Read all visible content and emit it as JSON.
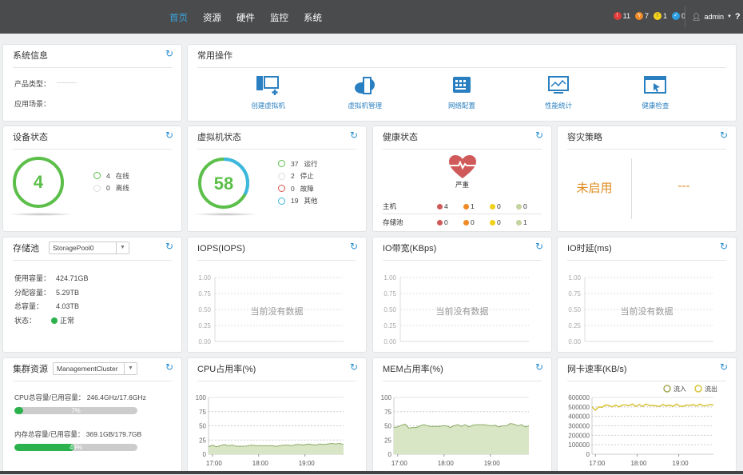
{
  "nav": {
    "items": [
      "首页",
      "资源",
      "硬件",
      "监控",
      "系统"
    ],
    "active": 0
  },
  "alerts": [
    {
      "icon": "critical-alarm-icon",
      "count": "11",
      "color": "#e03c3c"
    },
    {
      "icon": "major-alarm-icon",
      "count": "7",
      "color": "#f08a24"
    },
    {
      "icon": "minor-alarm-icon",
      "count": "1",
      "color": "#f2d11b"
    },
    {
      "icon": "ok-icon",
      "count": "0",
      "color": "#2a9ee0"
    }
  ],
  "user": {
    "name": "admin",
    "help": "?"
  },
  "sysinfo": {
    "title": "系统信息",
    "product_label": "产品类型：",
    "scene_label": "应用场景："
  },
  "ops": {
    "title": "常用操作",
    "items": [
      {
        "label": "创建虚拟机",
        "icon": "create-vm-icon"
      },
      {
        "label": "虚拟机管理",
        "icon": "vm-manage-icon"
      },
      {
        "label": "网络配置",
        "icon": "network-config-icon"
      },
      {
        "label": "性能统计",
        "icon": "performance-icon"
      },
      {
        "label": "健康检查",
        "icon": "health-check-icon"
      }
    ]
  },
  "device": {
    "title": "设备状态",
    "total": "4",
    "legend": [
      {
        "count": "4",
        "label": "在线",
        "color": "#5cbf4a"
      },
      {
        "count": "0",
        "label": "离线",
        "color": "#ddd"
      }
    ]
  },
  "vm": {
    "title": "虚拟机状态",
    "total": "58",
    "legend": [
      {
        "count": "37",
        "label": "运行",
        "color": "#5cbf4a"
      },
      {
        "count": "2",
        "label": "停止",
        "color": "#ddd"
      },
      {
        "count": "0",
        "label": "故障",
        "color": "#d9534f"
      },
      {
        "count": "19",
        "label": "其他",
        "color": "#3bb7e0"
      }
    ]
  },
  "health": {
    "title": "健康状态",
    "status": "严重",
    "colors": [
      "#d05a5a",
      "#f08a24",
      "#f2d11b",
      "#c4d3a0"
    ],
    "rows": [
      {
        "label": "主机",
        "values": [
          "4",
          "1",
          "0",
          "0"
        ]
      },
      {
        "label": "存储池",
        "values": [
          "0",
          "0",
          "0",
          "1"
        ]
      }
    ]
  },
  "dr": {
    "title": "容灾策略",
    "status": "未启用",
    "value": "---"
  },
  "storage": {
    "title": "存储池",
    "selected": "StoragePool0",
    "rows": [
      {
        "label": "使用容量：",
        "value": "424.71GB"
      },
      {
        "label": "分配容量：",
        "value": "5.29TB"
      },
      {
        "label": "总容量：",
        "value": "4.03TB"
      }
    ],
    "status_label": "状态：",
    "status": "正常"
  },
  "iops": {
    "title": "IOPS(IOPS)",
    "nodata": "当前没有数据"
  },
  "bw": {
    "title": "IO带宽(KBps)",
    "nodata": "当前没有数据"
  },
  "lat": {
    "title": "IO时延(ms)",
    "nodata": "当前没有数据"
  },
  "empty_ticks": [
    "1.00",
    "0.75",
    "0.50",
    "0.25",
    "0.00"
  ],
  "cluster": {
    "title": "集群资源",
    "selected": "ManagementCluster",
    "cpu_label": "CPU总容量/已用容量：",
    "cpu_value": "246.4GHz/17.6GHz",
    "cpu_pct": 7,
    "cpu_pct_label": "7%",
    "mem_label": "内存总容量/已用容量：",
    "mem_value": "369.1GB/179.7GB",
    "mem_pct": 49,
    "mem_pct_label": "49%"
  },
  "chart_data": [
    {
      "type": "area",
      "title": "CPU占用率(%)",
      "ylim": [
        0,
        100
      ],
      "yticks": [
        "100",
        "75",
        "50",
        "25",
        "0"
      ],
      "xticks": [
        "17:00",
        "18:00",
        "19:00"
      ],
      "x_range": [
        "16:55",
        "19:50"
      ],
      "values": [
        13,
        16,
        13,
        15,
        17,
        15,
        16,
        14,
        14,
        14,
        15,
        16,
        15,
        15,
        15,
        15,
        15,
        14,
        15,
        16,
        16,
        15,
        17,
        17,
        16,
        18,
        17,
        16,
        18,
        17,
        18,
        19,
        18,
        19,
        17
      ]
    },
    {
      "type": "area",
      "title": "MEM占用率(%)",
      "ylim": [
        0,
        100
      ],
      "yticks": [
        "100",
        "75",
        "50",
        "25",
        "0"
      ],
      "xticks": [
        "17:00",
        "18:00",
        "19:00"
      ],
      "x_range": [
        "16:55",
        "19:50"
      ],
      "values": [
        47,
        48,
        51,
        53,
        46,
        47,
        47,
        50,
        52,
        50,
        49,
        49,
        49,
        50,
        50,
        47,
        50,
        52,
        49,
        52,
        48,
        51,
        52,
        52,
        52,
        51,
        50,
        51,
        48,
        50,
        50,
        54,
        53,
        50,
        52,
        48,
        50
      ]
    },
    {
      "type": "line",
      "title": "网卡速率(KB/s)",
      "ylim": [
        0,
        600000
      ],
      "yticks": [
        "600000",
        "500000",
        "400000",
        "300000",
        "200000",
        "100000",
        "0"
      ],
      "xticks": [
        "17:00",
        "18:00",
        "19:00"
      ],
      "x_range": [
        "16:55",
        "19:50"
      ],
      "legend": "top-right",
      "series": [
        {
          "name": "流入",
          "color": "#a8a85a",
          "values": []
        },
        {
          "name": "流出",
          "color": "#d8c43a",
          "values": [
            500000,
            465000,
            500000,
            495000,
            520000,
            515000,
            500000,
            520000,
            500000,
            520000,
            520000,
            515000,
            530000,
            505000,
            525000,
            505000,
            530000,
            515000,
            515000,
            510000,
            505000,
            525000,
            510000,
            520000,
            505000,
            530000,
            510000,
            505000,
            520000,
            515000,
            525000,
            510000,
            530000,
            510000,
            515000,
            525000,
            520000
          ]
        }
      ]
    }
  ]
}
